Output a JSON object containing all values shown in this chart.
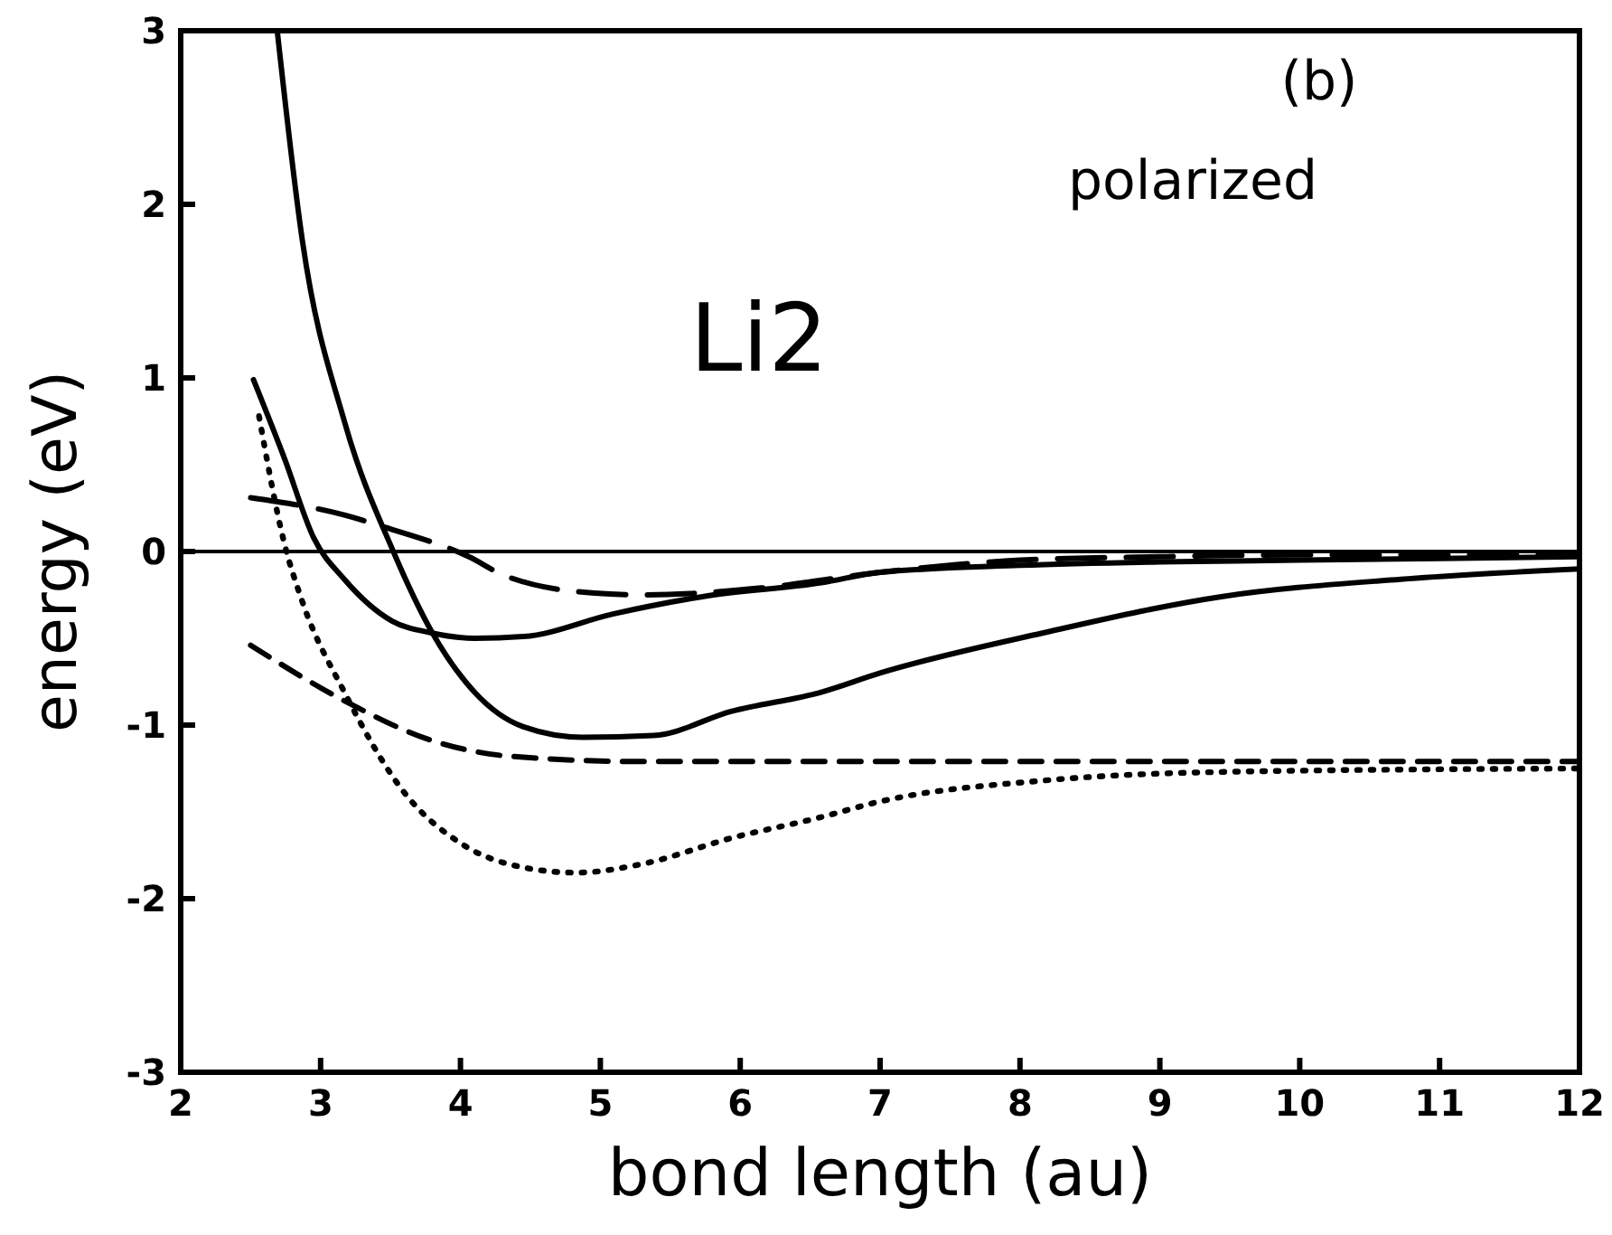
{
  "chart_data": {
    "type": "line",
    "xlabel": "bond length (au)",
    "ylabel": "energy (eV)",
    "annotations": [
      "(b)",
      "polarized",
      "Li2"
    ],
    "xlim": [
      2,
      12
    ],
    "ylim": [
      -3,
      3
    ],
    "xticks": [
      2,
      3,
      4,
      5,
      6,
      7,
      8,
      9,
      10,
      11,
      12
    ],
    "yticks": [
      -3,
      -2,
      -1,
      0,
      1,
      2,
      3
    ],
    "ref_lines": [
      {
        "axis": "y",
        "value": 0,
        "color": "#000000",
        "line_style": "solid"
      }
    ],
    "series": [
      {
        "color": "#000000",
        "line_style": "solid",
        "x": [
          2.69,
          2.87,
          3.17,
          3.52,
          3.8,
          4.1,
          4.45,
          4.87,
          5.38,
          5.94,
          6.58,
          7.0,
          8.16,
          9.44,
          10.72,
          12
        ],
        "values": [
          3,
          1.79,
          0.75,
          0,
          -0.47,
          -0.81,
          -1.01,
          -1.07,
          -1.06,
          -0.92,
          -0.81,
          -0.7,
          -0.47,
          -0.26,
          -0.16,
          -0.1
        ]
      },
      {
        "color": "#000000",
        "line_style": "solid",
        "x": [
          2.52,
          2.74,
          2.95,
          3.17,
          3.51,
          3.8,
          4.1,
          4.45,
          5.09,
          5.73,
          6.58,
          7.0,
          8.0,
          9.0,
          10.0,
          11.0,
          12
        ],
        "values": [
          0.99,
          0.54,
          0.08,
          -0.16,
          -0.4,
          -0.47,
          -0.5,
          -0.49,
          -0.36,
          -0.26,
          -0.18,
          -0.12,
          -0.08,
          -0.06,
          -0.05,
          -0.04,
          -0.03
        ]
      },
      {
        "color": "#000000",
        "line_style": "dotted",
        "x": [
          2.56,
          2.74,
          2.87,
          3.17,
          3.59,
          4.02,
          4.45,
          4.83,
          5.3,
          5.94,
          6.58,
          7.0,
          8.16,
          9.44,
          12
        ],
        "values": [
          0.78,
          0.05,
          -0.29,
          -0.81,
          -1.38,
          -1.69,
          -1.82,
          -1.85,
          -1.8,
          -1.65,
          -1.53,
          -1.44,
          -1.32,
          -1.27,
          -1.25
        ]
      },
      {
        "color": "#000000",
        "line_style": "dashed",
        "x": [
          2.5,
          3.17,
          3.8,
          4.36,
          5.3,
          7,
          9,
          12
        ],
        "values": [
          -0.54,
          -0.86,
          -1.09,
          -1.18,
          -1.21,
          -1.21,
          -1.21,
          -1.21
        ]
      },
      {
        "color": "#000000",
        "line_style": "longdash",
        "x": [
          2.5,
          3.17,
          3.46,
          4.06,
          4.32,
          4.96,
          5.3,
          6.15,
          7.0,
          8.0,
          9.0,
          10.0,
          11.0,
          12
        ],
        "values": [
          0.31,
          0.21,
          0.14,
          -0.03,
          -0.14,
          -0.24,
          -0.25,
          -0.21,
          -0.12,
          -0.05,
          -0.03,
          -0.02,
          -0.02,
          -0.02
        ]
      }
    ]
  }
}
